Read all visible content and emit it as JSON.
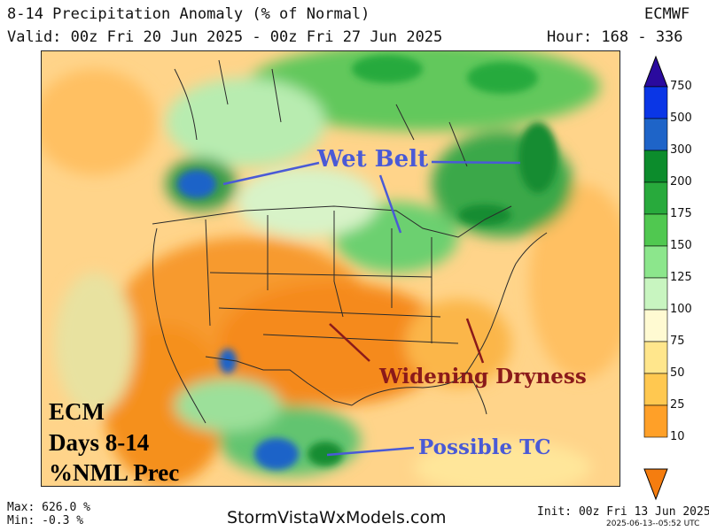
{
  "header": {
    "title": "8-14 Precipitation Anomaly (% of Normal)",
    "model": "ECMWF",
    "valid": "Valid: 00z Fri 20 Jun 2025 - 00z Fri 27 Jun 2025",
    "hour": "Hour: 168 - 336"
  },
  "annotations": {
    "wet_belt": "Wet Belt",
    "widening_dryness": "Widening Dryness",
    "possible_tc": "Possible TC",
    "ecm_line1": "ECM",
    "ecm_line2": "Days 8-14",
    "ecm_line3": "%NML Prec"
  },
  "colorbar": {
    "labels": [
      "750",
      "500",
      "300",
      "200",
      "175",
      "150",
      "125",
      "100",
      "75",
      "50",
      "25",
      "10"
    ],
    "colors": [
      "#2a0a9e",
      "#0a36e6",
      "#1e64c8",
      "#0c8c2c",
      "#28aa3c",
      "#50c850",
      "#8ce68c",
      "#c8f5c0",
      "#fffad2",
      "#ffe68c",
      "#ffc850",
      "#ffa028",
      "#f57d0f"
    ]
  },
  "footer": {
    "max": "Max: 626.0 %",
    "min": "Min: -0.3 %",
    "site": "StormVistaWxModels.com",
    "init": "Init: 00z Fri 13 Jun 2025",
    "stamp": "2025-06-13--05:52 UTC"
  },
  "colors": {
    "annotation_blue": "#4a5ad6",
    "annotation_red": "#8b1a1a"
  }
}
